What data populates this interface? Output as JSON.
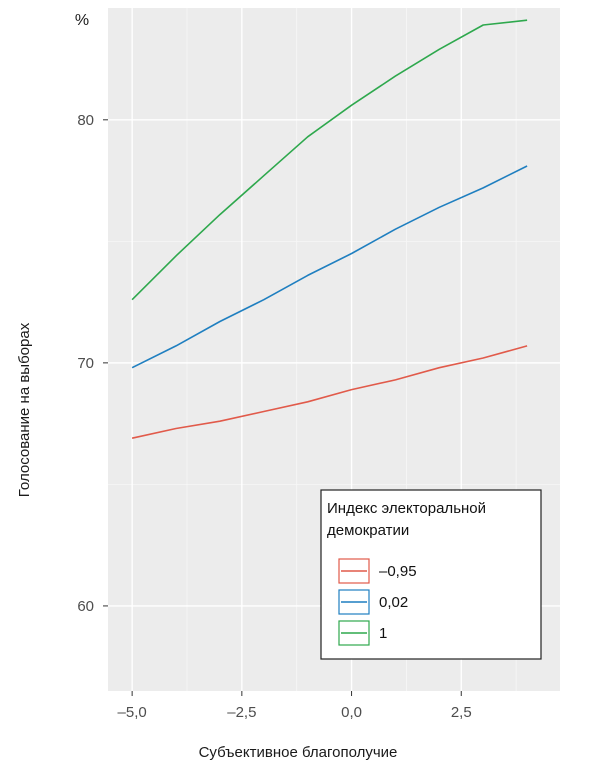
{
  "chart_data": {
    "type": "line",
    "unit_label": "%",
    "xlabel": "Субъективное благополучие",
    "ylabel": "Голосование на выборах",
    "xlim": [
      -5.55,
      4.75
    ],
    "ylim": [
      56.5,
      84.6
    ],
    "x_ticks": [
      -5.0,
      -2.5,
      0.0,
      2.5
    ],
    "x_tick_labels": [
      "–5,0",
      "–2,5",
      "0,0",
      "2,5"
    ],
    "y_ticks": [
      60,
      70,
      80
    ],
    "y_tick_labels": [
      "60",
      "70",
      "80"
    ],
    "grid": true,
    "legend": {
      "title_lines": [
        "Индекс электоральной",
        "демократии"
      ],
      "placement": "bottom-right"
    },
    "series": [
      {
        "name": "–0,95",
        "color": "#e15a4a",
        "x": [
          -5.0,
          -4.0,
          -3.0,
          -2.0,
          -1.0,
          0.0,
          1.0,
          2.0,
          3.0,
          4.0
        ],
        "values": [
          66.9,
          67.3,
          67.6,
          68.0,
          68.4,
          68.9,
          69.3,
          69.8,
          70.2,
          70.7
        ]
      },
      {
        "name": "0,02",
        "color": "#1f7fc0",
        "x": [
          -5.0,
          -4.0,
          -3.0,
          -2.0,
          -1.0,
          0.0,
          1.0,
          2.0,
          3.0,
          4.0
        ],
        "values": [
          69.8,
          70.7,
          71.7,
          72.6,
          73.6,
          74.5,
          75.5,
          76.4,
          77.2,
          78.1
        ]
      },
      {
        "name": "1",
        "color": "#2ea84d",
        "x": [
          -5.0,
          -4.0,
          -3.0,
          -2.0,
          -1.0,
          0.0,
          1.0,
          2.0,
          3.0,
          4.0
        ],
        "values": [
          72.6,
          74.4,
          76.1,
          77.7,
          79.3,
          80.6,
          81.8,
          82.9,
          83.9,
          84.1
        ]
      }
    ]
  }
}
